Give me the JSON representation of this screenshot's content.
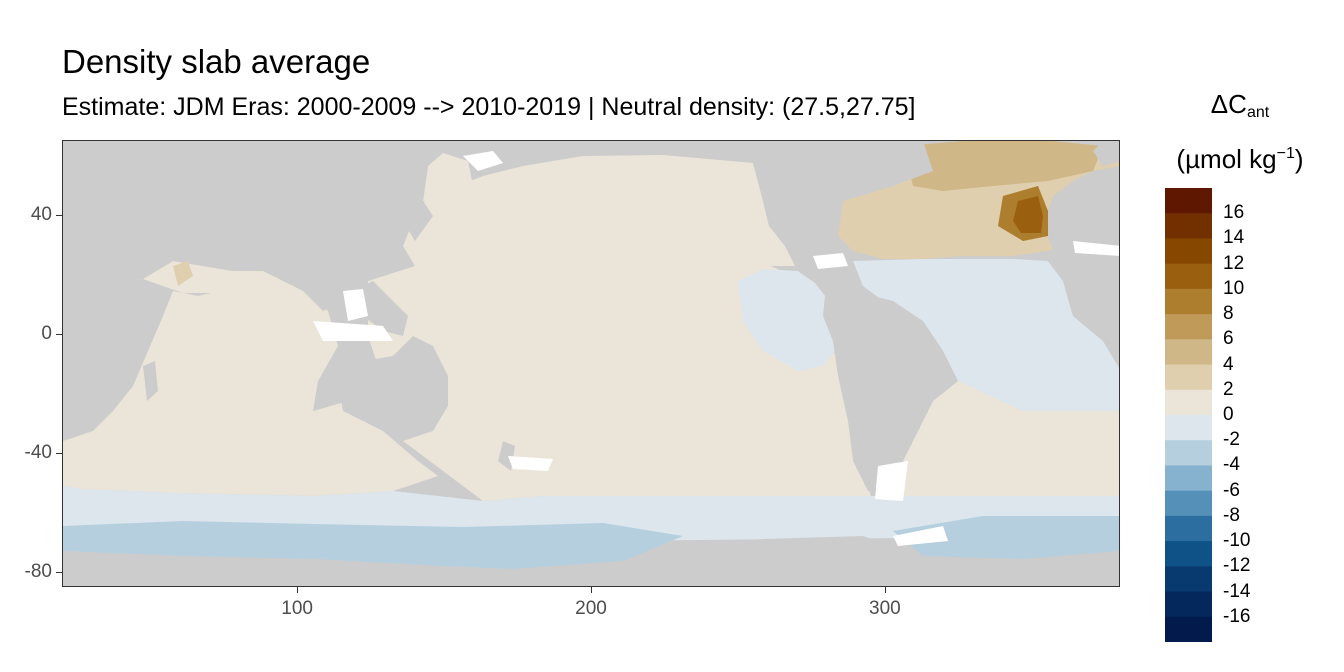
{
  "title": "Density slab average",
  "subtitle": "Estimate: JDM Eras: 2000-2009 --> 2010-2019 | Neutral density: (27.5,27.75]",
  "legend": {
    "title_symbol": "ΔC",
    "title_subscript": "ant",
    "unit_prefix": "(µmol kg",
    "unit_exponent": "−1",
    "unit_suffix": ")",
    "labels": [
      "16",
      "14",
      "12",
      "10",
      "8",
      "6",
      "4",
      "2",
      "0",
      "-2",
      "-4",
      "-6",
      "-8",
      "-10",
      "-12",
      "-14",
      "-16"
    ],
    "colors": [
      "#5e1700",
      "#723000",
      "#864800",
      "#9a6010",
      "#ad7e2e",
      "#bf9a58",
      "#d0b788",
      "#dfcfae",
      "#ebe5d9",
      "#dde6ec",
      "#b5cfdf",
      "#86b2cf",
      "#5590b9",
      "#2c6ea0",
      "#0e5287",
      "#083a70",
      "#04285c",
      "#021a4c"
    ]
  },
  "axes": {
    "x_ticks": [
      "100",
      "200",
      "300"
    ],
    "y_ticks": [
      "40",
      "0",
      "-40",
      "-80"
    ]
  },
  "chart_data": {
    "type": "heatmap",
    "title": "Density slab average",
    "subtitle": "Estimate: JDM Eras: 2000-2009 --> 2010-2019 | Neutral density: (27.5,27.75]",
    "xlabel": "",
    "ylabel": "",
    "xlim": [
      20,
      380
    ],
    "ylim": [
      -85,
      65
    ],
    "x_ticks": [
      100,
      200,
      300
    ],
    "y_ticks": [
      40,
      0,
      -40,
      -80
    ],
    "variable": "ΔCant",
    "unit": "µmol kg⁻¹",
    "color_scale_breaks": [
      16,
      14,
      12,
      10,
      8,
      6,
      4,
      2,
      0,
      -2,
      -4,
      -6,
      -8,
      -10,
      -12,
      -14,
      -16
    ],
    "background_colors": {
      "land": "#cccccc",
      "no_data": "#ffffff"
    },
    "regions": [
      {
        "name": "Indian, Pacific and South Atlantic interior",
        "value_range": [
          0,
          2
        ],
        "color": "#ebe5d9"
      },
      {
        "name": "North Atlantic mid-latitudes",
        "value_range": [
          2,
          4
        ],
        "color": "#dfcfae"
      },
      {
        "name": "North Atlantic subpolar",
        "value_range": [
          4,
          8
        ],
        "color": "#d0b788"
      },
      {
        "name": "Eastern North Atlantic near Iberia (~350E, 40N)",
        "value_range": [
          12,
          16
        ],
        "color": "#9a6010"
      },
      {
        "name": "Equatorial Atlantic and Eastern Tropical Pacific",
        "value_range": [
          -2,
          0
        ],
        "color": "#dde6ec"
      },
      {
        "name": "Southern Ocean band (50-65S)",
        "value_range": [
          -2,
          0
        ],
        "color": "#dde6ec"
      },
      {
        "name": "Antarctic margin (65-75S)",
        "value_range": [
          -4,
          -2
        ],
        "color": "#b5cfdf"
      }
    ]
  }
}
